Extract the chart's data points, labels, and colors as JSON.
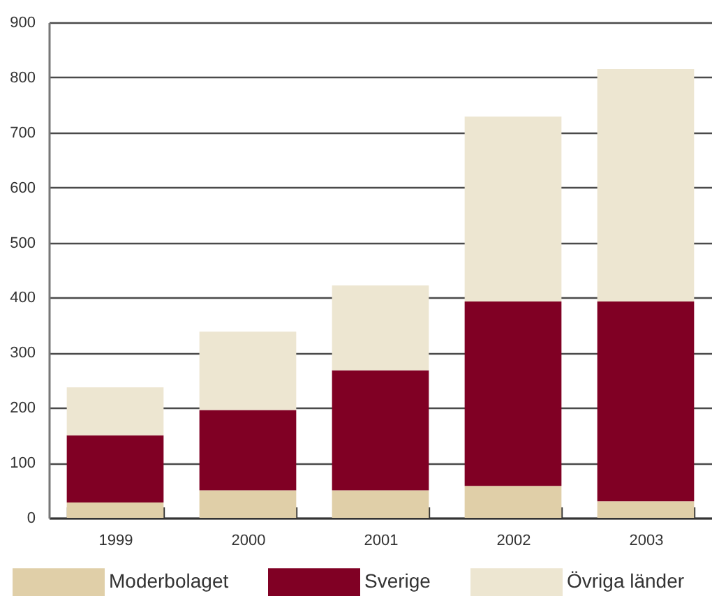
{
  "chart_data": {
    "type": "bar",
    "categories": [
      "1999",
      "2000",
      "2001",
      "2002",
      "2003"
    ],
    "stacked": true,
    "series": [
      {
        "name": "Moderbolaget",
        "color": "#e0cfa8",
        "values": [
          28,
          50,
          50,
          58,
          30
        ]
      },
      {
        "name": "Sverige",
        "color": "#800024",
        "values": [
          122,
          146,
          218,
          335,
          363
        ]
      },
      {
        "name": "Övriga länder",
        "color": "#ede6d1",
        "values": [
          87,
          142,
          154,
          336,
          422
        ]
      }
    ],
    "ylim": [
      0,
      900
    ],
    "yticks": [
      0,
      100,
      200,
      300,
      400,
      500,
      600,
      700,
      800,
      900
    ],
    "grid": "y",
    "legend": "bottom"
  }
}
